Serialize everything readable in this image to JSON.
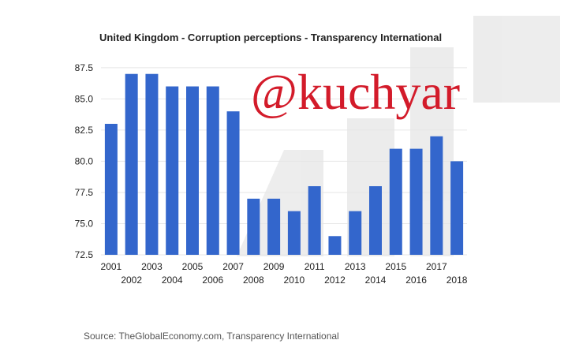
{
  "chart_data": {
    "type": "bar",
    "title": "United Kingdom - Corruption perceptions - Transparency International",
    "xlabel": "",
    "ylabel": "",
    "categories": [
      "2001",
      "2002",
      "2003",
      "2004",
      "2005",
      "2006",
      "2007",
      "2008",
      "2009",
      "2010",
      "2011",
      "2012",
      "2013",
      "2014",
      "2015",
      "2016",
      "2017",
      "2018"
    ],
    "values": [
      83,
      87,
      87,
      86,
      86,
      86,
      84,
      77,
      77,
      76,
      78,
      74,
      76,
      78,
      81,
      81,
      82,
      80
    ],
    "ylim": [
      72.5,
      88.5
    ],
    "yticks": [
      "72.5",
      "75.0",
      "77.5",
      "80.0",
      "82.5",
      "85.0",
      "87.5"
    ],
    "grid": true,
    "bar_color": "#3366cc"
  },
  "source": "Source: TheGlobalEconomy.com, Transparency International",
  "watermark": "@kuchyar",
  "colors": {
    "bar": "#3366cc",
    "watermark": "#d31b2a",
    "grid": "#e6e6e6"
  }
}
